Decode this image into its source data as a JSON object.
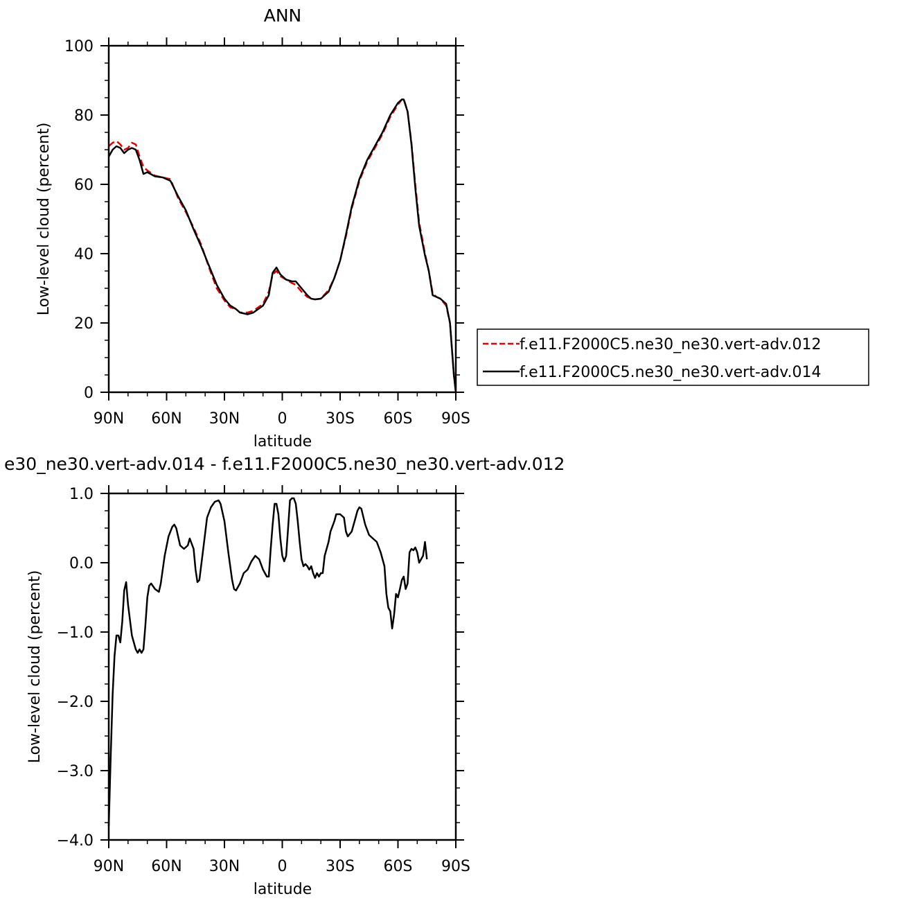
{
  "chart_data": [
    {
      "type": "line",
      "title": "ANN",
      "xlabel": "latitude",
      "ylabel": "Low-level cloud (percent)",
      "xlim": [
        90,
        -90
      ],
      "ylim": [
        0,
        100
      ],
      "x_ticks": [
        90,
        60,
        30,
        0,
        -30,
        -60,
        -90
      ],
      "x_tick_labels": [
        "90N",
        "60N",
        "30N",
        "0",
        "30S",
        "60S",
        "90S"
      ],
      "y_ticks": [
        0,
        20,
        40,
        60,
        80,
        100
      ],
      "y_tick_labels": [
        "0",
        "20",
        "40",
        "60",
        "80",
        "100"
      ],
      "legend_position": "right",
      "series": [
        {
          "name": "f.e11.F2000C5.ne30_ne30.vert-adv.012",
          "color": "#e00000",
          "dash": "dashed",
          "points": [
            [
              90,
              71
            ],
            [
              88,
              72
            ],
            [
              86,
              72.5
            ],
            [
              84,
              71.5
            ],
            [
              82,
              70
            ],
            [
              80,
              70.5
            ],
            [
              78,
              72
            ],
            [
              76,
              71.5
            ],
            [
              74,
              68
            ],
            [
              72,
              65
            ],
            [
              70,
              64
            ],
            [
              66,
              62.5
            ],
            [
              62,
              62
            ],
            [
              58,
              61.5
            ],
            [
              54,
              56
            ],
            [
              50,
              52
            ],
            [
              46,
              47.5
            ],
            [
              42,
              42.5
            ],
            [
              38,
              36
            ],
            [
              34,
              30
            ],
            [
              30,
              26.5
            ],
            [
              27,
              24.5
            ],
            [
              24,
              24
            ],
            [
              22,
              23
            ],
            [
              18,
              23
            ],
            [
              15,
              23.5
            ],
            [
              10,
              25.5
            ],
            [
              7,
              29
            ],
            [
              5,
              34
            ],
            [
              3,
              35
            ],
            [
              1,
              33.5
            ],
            [
              -2,
              32.5
            ],
            [
              -5,
              31.5
            ],
            [
              -7,
              31
            ],
            [
              -10,
              29
            ],
            [
              -13,
              27.5
            ],
            [
              -15,
              27
            ],
            [
              -17,
              26.8
            ],
            [
              -20,
              27
            ],
            [
              -24,
              29.5
            ],
            [
              -27,
              33
            ],
            [
              -30,
              38
            ],
            [
              -33,
              45
            ],
            [
              -36,
              53
            ],
            [
              -40,
              61
            ],
            [
              -44,
              66.5
            ],
            [
              -48,
              70.5
            ],
            [
              -52,
              74.5
            ],
            [
              -56,
              79.5
            ],
            [
              -60,
              83
            ],
            [
              -62,
              84.5
            ],
            [
              -63,
              84.7
            ],
            [
              -65,
              81
            ],
            [
              -67,
              72
            ],
            [
              -69,
              60
            ],
            [
              -71,
              49
            ],
            [
              -74,
              40
            ],
            [
              -76,
              35
            ],
            [
              -78,
              28.5
            ],
            [
              -80,
              27.5
            ],
            [
              -82,
              27
            ],
            [
              -85,
              25
            ],
            [
              -87,
              20
            ],
            [
              -89,
              5
            ],
            [
              -90,
              0
            ]
          ]
        },
        {
          "name": "f.e11.F2000C5.ne30_ne30.vert-adv.014",
          "color": "#000000",
          "dash": "solid",
          "points": [
            [
              90,
              68
            ],
            [
              88,
              70
            ],
            [
              86,
              71
            ],
            [
              84,
              70.5
            ],
            [
              82,
              69
            ],
            [
              80,
              70
            ],
            [
              78,
              70.5
            ],
            [
              76,
              70
            ],
            [
              74,
              67
            ],
            [
              72,
              63
            ],
            [
              70,
              63.5
            ],
            [
              66,
              62.3
            ],
            [
              62,
              62
            ],
            [
              58,
              61
            ],
            [
              54,
              56.5
            ],
            [
              50,
              52.5
            ],
            [
              46,
              47
            ],
            [
              42,
              42
            ],
            [
              38,
              36.5
            ],
            [
              34,
              31
            ],
            [
              30,
              27
            ],
            [
              27,
              25
            ],
            [
              24,
              24
            ],
            [
              22,
              23
            ],
            [
              18,
              22.5
            ],
            [
              15,
              23
            ],
            [
              10,
              25
            ],
            [
              7,
              28
            ],
            [
              5,
              34.5
            ],
            [
              3,
              36
            ],
            [
              1,
              34
            ],
            [
              -2,
              32.5
            ],
            [
              -5,
              32
            ],
            [
              -7,
              32
            ],
            [
              -10,
              30
            ],
            [
              -13,
              28
            ],
            [
              -15,
              27
            ],
            [
              -17,
              26.8
            ],
            [
              -20,
              27
            ],
            [
              -24,
              29
            ],
            [
              -27,
              33
            ],
            [
              -30,
              38
            ],
            [
              -33,
              45.5
            ],
            [
              -36,
              53.5
            ],
            [
              -40,
              61.5
            ],
            [
              -44,
              67
            ],
            [
              -48,
              71
            ],
            [
              -52,
              75
            ],
            [
              -56,
              80
            ],
            [
              -60,
              83.5
            ],
            [
              -62,
              84.5
            ],
            [
              -63,
              84.5
            ],
            [
              -65,
              81
            ],
            [
              -67,
              71.5
            ],
            [
              -69,
              59
            ],
            [
              -71,
              48
            ],
            [
              -74,
              39.5
            ],
            [
              -76,
              35
            ],
            [
              -78,
              28
            ],
            [
              -80,
              27.5
            ],
            [
              -82,
              27
            ],
            [
              -85,
              25.5
            ],
            [
              -87,
              20
            ],
            [
              -89,
              5
            ],
            [
              -90,
              0
            ]
          ]
        }
      ]
    },
    {
      "type": "line",
      "title": "e30_ne30.vert-adv.014 - f.e11.F2000C5.ne30_ne30.vert-adv.012",
      "xlabel": "latitude",
      "ylabel": "Low-level cloud (percent)",
      "xlim": [
        90,
        -90
      ],
      "ylim": [
        -4,
        1
      ],
      "x_ticks": [
        90,
        60,
        30,
        0,
        -30,
        -60,
        -90
      ],
      "x_tick_labels": [
        "90N",
        "60N",
        "30N",
        "0",
        "30S",
        "60S",
        "90S"
      ],
      "y_ticks": [
        -4,
        -3,
        -2,
        -1,
        0,
        1
      ],
      "y_tick_labels": [
        "−4.0",
        "−3.0",
        "−2.0",
        "−1.0",
        "0.0",
        "1.0"
      ],
      "series": [
        {
          "color": "#000000",
          "dash": "solid",
          "points": [
            [
              90,
              -3.8
            ],
            [
              89,
              -2.8
            ],
            [
              88,
              -1.9
            ],
            [
              87,
              -1.35
            ],
            [
              86,
              -1.05
            ],
            [
              85,
              -1.05
            ],
            [
              84,
              -1.15
            ],
            [
              83,
              -0.85
            ],
            [
              82,
              -0.4
            ],
            [
              81,
              -0.28
            ],
            [
              80,
              -0.6
            ],
            [
              78,
              -1.05
            ],
            [
              76,
              -1.25
            ],
            [
              75,
              -1.3
            ],
            [
              74,
              -1.25
            ],
            [
              73,
              -1.3
            ],
            [
              72,
              -1.25
            ],
            [
              71,
              -0.9
            ],
            [
              70,
              -0.5
            ],
            [
              69,
              -0.33
            ],
            [
              68,
              -0.3
            ],
            [
              66,
              -0.38
            ],
            [
              64,
              -0.42
            ],
            [
              63,
              -0.3
            ],
            [
              61,
              0.1
            ],
            [
              59,
              0.38
            ],
            [
              57,
              0.52
            ],
            [
              56,
              0.55
            ],
            [
              55,
              0.5
            ],
            [
              53,
              0.25
            ],
            [
              51,
              0.2
            ],
            [
              49,
              0.25
            ],
            [
              48,
              0.35
            ],
            [
              46,
              0.2
            ],
            [
              45,
              -0.1
            ],
            [
              44,
              -0.28
            ],
            [
              43,
              -0.25
            ],
            [
              41,
              0.2
            ],
            [
              39,
              0.65
            ],
            [
              37,
              0.8
            ],
            [
              35,
              0.88
            ],
            [
              33,
              0.9
            ],
            [
              32,
              0.85
            ],
            [
              30,
              0.6
            ],
            [
              28,
              0.15
            ],
            [
              26,
              -0.25
            ],
            [
              25,
              -0.38
            ],
            [
              24,
              -0.4
            ],
            [
              22,
              -0.3
            ],
            [
              20,
              -0.15
            ],
            [
              18,
              -0.1
            ],
            [
              16,
              0.02
            ],
            [
              14,
              0.1
            ],
            [
              12,
              0.05
            ],
            [
              10,
              -0.1
            ],
            [
              8,
              -0.2
            ],
            [
              7,
              -0.2
            ],
            [
              6,
              0.2
            ],
            [
              5,
              0.55
            ],
            [
              4,
              0.85
            ],
            [
              3,
              0.85
            ],
            [
              2,
              0.7
            ],
            [
              1,
              0.35
            ],
            [
              0,
              0.1
            ],
            [
              -1,
              0.02
            ],
            [
              -2,
              0.1
            ],
            [
              -3,
              0.5
            ],
            [
              -4,
              0.9
            ],
            [
              -5,
              0.93
            ],
            [
              -6,
              0.93
            ],
            [
              -7,
              0.85
            ],
            [
              -8,
              0.6
            ],
            [
              -9,
              0.3
            ],
            [
              -10,
              0.05
            ],
            [
              -11,
              -0.05
            ],
            [
              -12,
              -0.02
            ],
            [
              -13,
              -0.05
            ],
            [
              -14,
              -0.1
            ],
            [
              -15,
              -0.05
            ],
            [
              -16,
              -0.15
            ],
            [
              -17,
              -0.22
            ],
            [
              -18,
              -0.15
            ],
            [
              -19,
              -0.2
            ],
            [
              -20,
              -0.15
            ],
            [
              -21,
              -0.15
            ],
            [
              -22,
              0.1
            ],
            [
              -24,
              0.3
            ],
            [
              -25,
              0.45
            ],
            [
              -27,
              0.6
            ],
            [
              -28,
              0.7
            ],
            [
              -30,
              0.7
            ],
            [
              -32,
              0.65
            ],
            [
              -33,
              0.45
            ],
            [
              -34,
              0.38
            ],
            [
              -36,
              0.45
            ],
            [
              -38,
              0.65
            ],
            [
              -39,
              0.75
            ],
            [
              -40,
              0.8
            ],
            [
              -41,
              0.78
            ],
            [
              -43,
              0.55
            ],
            [
              -45,
              0.4
            ],
            [
              -47,
              0.35
            ],
            [
              -49,
              0.3
            ],
            [
              -51,
              0.15
            ],
            [
              -53,
              -0.05
            ],
            [
              -54,
              -0.45
            ],
            [
              -55,
              -0.65
            ],
            [
              -56,
              -0.7
            ],
            [
              -57,
              -0.95
            ],
            [
              -58,
              -0.75
            ],
            [
              -59,
              -0.45
            ],
            [
              -60,
              -0.5
            ],
            [
              -61,
              -0.38
            ],
            [
              -62,
              -0.25
            ],
            [
              -63,
              -0.2
            ],
            [
              -64,
              -0.38
            ],
            [
              -65,
              -0.3
            ],
            [
              -66,
              0.15
            ],
            [
              -67,
              0.2
            ],
            [
              -68,
              0.18
            ],
            [
              -69,
              0.22
            ],
            [
              -70,
              0.15
            ],
            [
              -71,
              0.0
            ],
            [
              -72,
              0.05
            ],
            [
              -73,
              0.1
            ],
            [
              -74,
              0.3
            ],
            [
              -75,
              0.05
            ]
          ]
        }
      ]
    }
  ]
}
